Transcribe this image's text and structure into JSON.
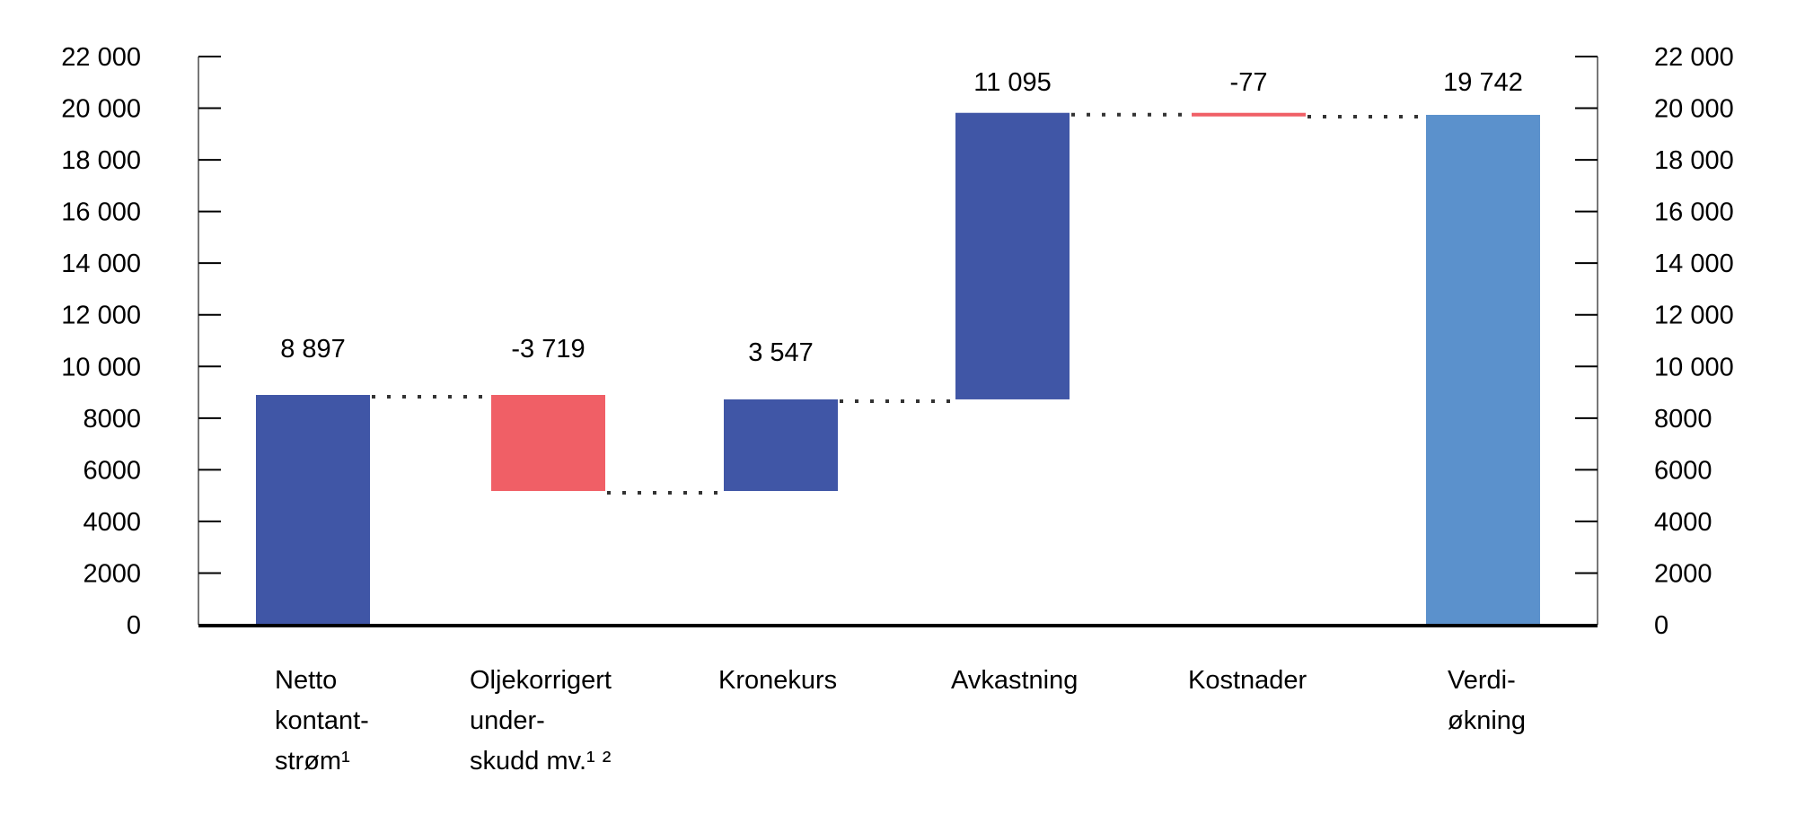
{
  "chart_data": {
    "type": "waterfall",
    "title": "",
    "xlabel": "",
    "ylabel": "",
    "ylim": [
      0,
      22000
    ],
    "yticks": [
      0,
      2000,
      4000,
      6000,
      8000,
      10000,
      12000,
      14000,
      16000,
      18000,
      20000,
      22000
    ],
    "ytick_labels": [
      "0",
      "2000",
      "4000",
      "6000",
      "8000",
      "10 000",
      "12 000",
      "14 000",
      "16 000",
      "18 000",
      "20 000",
      "22 000"
    ],
    "right_axis_mirrors_left": true,
    "grid": false,
    "legend": null,
    "categories": [
      "Netto kontantstrøm¹",
      "Oljekorrigert underskudd mv.¹ ²",
      "Kronekurs",
      "Avkastning",
      "Kostnader",
      "Verdiøkning"
    ],
    "category_label_lines": [
      [
        "Netto",
        "kontant-",
        "strøm¹"
      ],
      [
        "Oljekorrigert",
        "under-",
        "skudd mv.¹ ²"
      ],
      [
        "Kronekurs"
      ],
      [
        "Avkastning"
      ],
      [
        "Kostnader"
      ],
      [
        "Verdi-",
        "økning"
      ]
    ],
    "values": [
      8897,
      -3719,
      3547,
      11095,
      -77,
      19742
    ],
    "value_labels": [
      "8 897",
      "-3 719",
      "3 547",
      "11 095",
      "-77",
      "19 742"
    ],
    "bar_kinds": [
      "increase",
      "decrease",
      "increase",
      "increase",
      "decrease",
      "total"
    ],
    "colors": {
      "increase": "#4056a6",
      "decrease": "#f05f66",
      "total": "#5b91cc",
      "connector": "#333333",
      "axis": "#000000"
    }
  }
}
